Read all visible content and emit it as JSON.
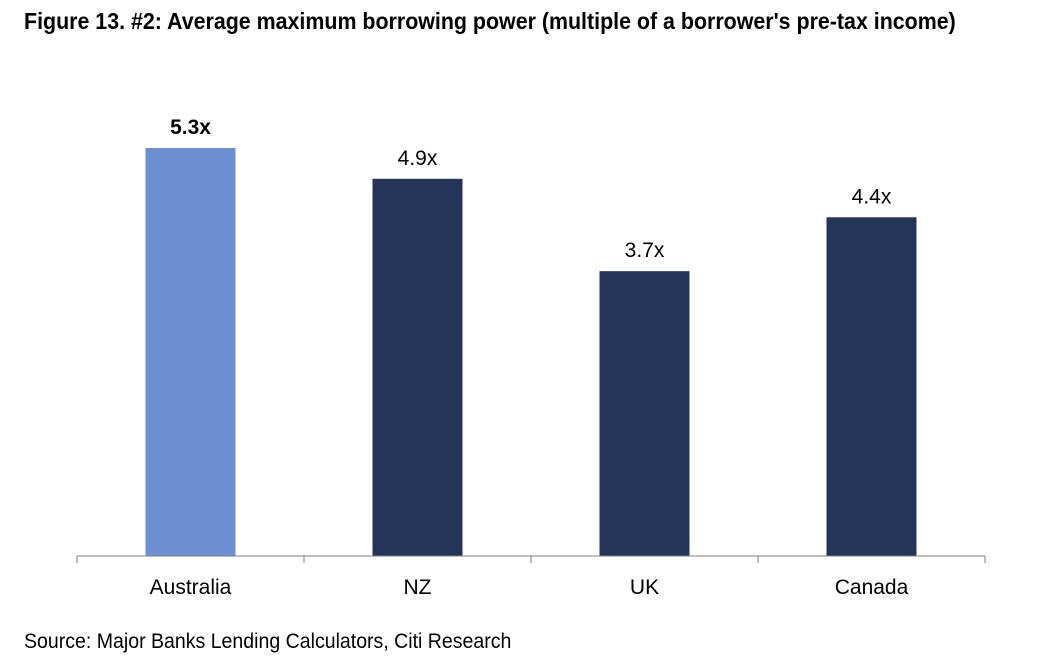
{
  "title": "Figure 13. #2: Average maximum borrowing power (multiple of a borrower's pre-tax income)",
  "source": "Source: Major Banks Lending Calculators, Citi Research",
  "chart_data": {
    "type": "bar",
    "title": "Figure 13. #2: Average maximum borrowing power (multiple of a borrower's pre-tax income)",
    "xlabel": "",
    "ylabel": "",
    "categories": [
      "Australia",
      "NZ",
      "UK",
      "Canada"
    ],
    "values": [
      5.3,
      4.9,
      3.7,
      4.4
    ],
    "data_labels": [
      "5.3x",
      "4.9x",
      "3.7x",
      "4.4x"
    ],
    "highlighted_category": "Australia",
    "colors": {
      "highlight": "#6d8fd4",
      "default": "#25355a",
      "axis": "#808080"
    },
    "ylim": [
      0,
      5.3
    ],
    "grid": false,
    "legend": "none"
  }
}
